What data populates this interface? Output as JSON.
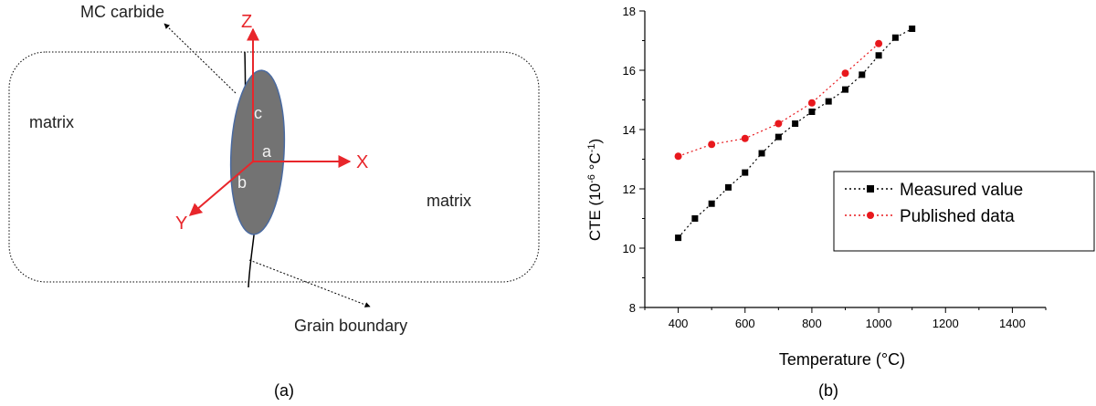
{
  "diagram": {
    "carbide_label": "MC carbide",
    "grain_boundary_label": "Grain boundary",
    "matrix_labels": [
      "matrix",
      "matrix"
    ],
    "axes": [
      {
        "name": "Z",
        "color": "#e8262b"
      },
      {
        "name": "X",
        "color": "#e8262b"
      },
      {
        "name": "Y",
        "color": "#e8262b"
      }
    ],
    "carbide_dims": [
      "c",
      "a",
      "b"
    ],
    "carbide_fill": "#737373",
    "carbide_stroke": "#4a6aa0"
  },
  "panel_labels": [
    "(a)",
    "(b)"
  ],
  "chart_data": {
    "type": "scatter",
    "xlabel": "Temperature (°C)",
    "ylabel_parts": [
      "CTE (10",
      "-6",
      " °C",
      "-1",
      ")"
    ],
    "xlim": [
      300,
      1500
    ],
    "ylim": [
      8,
      18
    ],
    "xticks": [
      400,
      600,
      800,
      1000,
      1200,
      1400
    ],
    "yticks": [
      8,
      10,
      12,
      14,
      16,
      18
    ],
    "grid": false,
    "legend_position": "right",
    "series": [
      {
        "name": "Measured value",
        "marker": "square",
        "color": "#000000",
        "line_style": "dotted",
        "x": [
          400,
          450,
          500,
          550,
          600,
          650,
          700,
          750,
          800,
          850,
          900,
          950,
          1000,
          1050,
          1100
        ],
        "y": [
          10.35,
          11.0,
          11.5,
          12.05,
          12.55,
          13.2,
          13.75,
          14.2,
          14.6,
          14.95,
          15.35,
          15.85,
          16.5,
          17.1,
          17.4
        ]
      },
      {
        "name": "Published data",
        "marker": "circle",
        "color": "#e8181d",
        "line_style": "dotted",
        "x": [
          400,
          500,
          600,
          700,
          800,
          900,
          1000
        ],
        "y": [
          13.1,
          13.5,
          13.7,
          14.2,
          14.9,
          15.9,
          16.9
        ]
      }
    ]
  }
}
